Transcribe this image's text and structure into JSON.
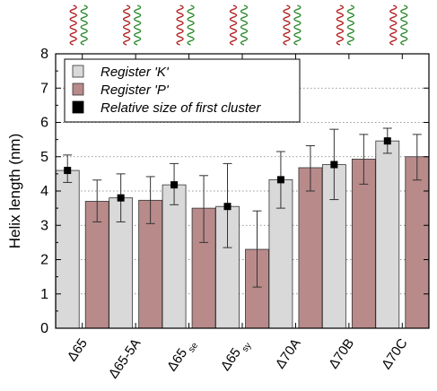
{
  "chart_data": {
    "type": "bar",
    "ylabel": "Helix length (nm)",
    "ylim": [
      0,
      8
    ],
    "yticks": [
      0,
      1,
      2,
      3,
      4,
      5,
      6,
      7,
      8
    ],
    "grid": "horizontal dotted",
    "legend_placement": "top-left",
    "categories": [
      {
        "main": "Δ65",
        "sub": ""
      },
      {
        "main": "Δ65-5A",
        "sub": ""
      },
      {
        "main": "Δ65",
        "sub": "se"
      },
      {
        "main": "Δ65",
        "sub": "sy"
      },
      {
        "main": "Δ70A",
        "sub": ""
      },
      {
        "main": "Δ70B",
        "sub": ""
      },
      {
        "main": "Δ70C",
        "sub": ""
      }
    ],
    "series": [
      {
        "name": "Register 'K'",
        "color": "#d9d9d9",
        "values": [
          4.6,
          3.8,
          4.18,
          3.55,
          4.33,
          4.77,
          5.46
        ],
        "err_low": [
          4.25,
          3.1,
          3.6,
          2.35,
          3.5,
          3.75,
          5.1
        ],
        "err_high": [
          5.05,
          4.5,
          4.8,
          4.8,
          5.15,
          5.8,
          5.83
        ]
      },
      {
        "name": "Register 'P'",
        "color": "#b98a8a",
        "values": [
          3.7,
          3.73,
          3.5,
          2.3,
          4.68,
          4.93,
          5.0
        ],
        "err_low": [
          3.1,
          3.05,
          2.5,
          1.2,
          4.0,
          4.2,
          4.32
        ],
        "err_high": [
          4.32,
          4.42,
          4.45,
          3.42,
          5.32,
          5.65,
          5.65
        ]
      }
    ],
    "first_cluster_marker": {
      "name": "Relative size of first cluster",
      "color": "#000000",
      "values": [
        4.6,
        3.8,
        4.18,
        3.55,
        4.33,
        4.77,
        5.46
      ]
    }
  },
  "structure_icons": {
    "count": 7,
    "colors": [
      "#b22222",
      "#2e8b2e"
    ]
  }
}
